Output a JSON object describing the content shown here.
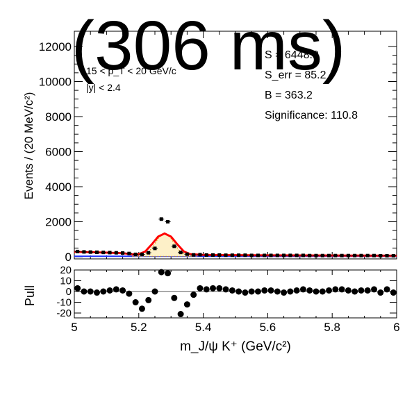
{
  "overlay_title": "(306 ms)",
  "info": {
    "pt_line": "15 < p_T < 20 GeV/c",
    "y_line": "|y| < 2.4",
    "s_line": "S = 6448.0",
    "serr_line": "S_err = 85.2",
    "b_line": "B = 363.2",
    "sig_line": "Significance: 110.8"
  },
  "chart_data": [
    {
      "type": "line",
      "panel": "main",
      "ylabel": "Events / (20 MeV/c²)",
      "xlabel": "m_J/ψ K⁺ (GeV/c²)",
      "xlim": [
        5.0,
        6.0
      ],
      "ylim": [
        0,
        12000
      ],
      "xticks": [
        "5",
        "5.2",
        "5.4",
        "5.6",
        "5.8",
        "6"
      ],
      "yticks": [
        "0",
        "2000",
        "4000",
        "6000",
        "8000",
        "10000",
        "12000"
      ],
      "series": [
        {
          "role": "data points",
          "x": [
            5.01,
            5.03,
            5.05,
            5.07,
            5.09,
            5.11,
            5.13,
            5.15,
            5.17,
            5.19,
            5.21,
            5.23,
            5.25,
            5.27,
            5.29,
            5.31,
            5.33,
            5.35,
            5.37,
            5.39,
            5.41,
            5.43,
            5.45,
            5.47,
            5.49,
            5.51,
            5.53,
            5.55,
            5.57,
            5.59,
            5.61,
            5.63,
            5.65,
            5.67,
            5.69,
            5.71,
            5.73,
            5.75,
            5.77,
            5.79,
            5.81,
            5.83,
            5.85,
            5.87,
            5.89,
            5.91,
            5.93,
            5.95,
            5.97,
            5.99
          ],
          "y": [
            300,
            280,
            270,
            260,
            250,
            240,
            230,
            215,
            190,
            140,
            140,
            230,
            480,
            2150,
            2000,
            600,
            250,
            150,
            110,
            120,
            100,
            100,
            100,
            90,
            90,
            90,
            90,
            80,
            80,
            80,
            80,
            80,
            80,
            80,
            80,
            80,
            70,
            70,
            70,
            70,
            70,
            70,
            70,
            70,
            70,
            70,
            70,
            60,
            60,
            60
          ]
        },
        {
          "role": "total fit",
          "color": "#ff0000",
          "x": [
            5.0,
            5.05,
            5.1,
            5.15,
            5.18,
            5.2,
            5.22,
            5.24,
            5.26,
            5.28,
            5.3,
            5.32,
            5.34,
            5.36,
            5.4,
            5.5,
            5.6,
            5.7,
            5.8,
            5.9,
            6.0
          ],
          "y": [
            280,
            260,
            240,
            210,
            140,
            150,
            300,
            700,
            1150,
            1330,
            1150,
            700,
            300,
            150,
            110,
            95,
            85,
            80,
            75,
            70,
            65
          ]
        }
      ]
    },
    {
      "type": "scatter",
      "panel": "pull",
      "ylabel": "Pull",
      "xlim": [
        5.0,
        6.0
      ],
      "ylim": [
        -22,
        22
      ],
      "yticks": [
        "-20",
        "-10",
        "0",
        "10",
        "20"
      ],
      "x": [
        5.01,
        5.03,
        5.05,
        5.07,
        5.09,
        5.11,
        5.13,
        5.15,
        5.17,
        5.19,
        5.21,
        5.23,
        5.25,
        5.27,
        5.29,
        5.31,
        5.33,
        5.35,
        5.37,
        5.39,
        5.41,
        5.43,
        5.45,
        5.47,
        5.49,
        5.51,
        5.53,
        5.55,
        5.57,
        5.59,
        5.61,
        5.63,
        5.65,
        5.67,
        5.69,
        5.71,
        5.73,
        5.75,
        5.77,
        5.79,
        5.81,
        5.83,
        5.85,
        5.87,
        5.89,
        5.91,
        5.93,
        5.95,
        5.97,
        5.99
      ],
      "y": [
        3,
        0,
        0,
        -1,
        0,
        1,
        2,
        1,
        -2,
        -10,
        -16,
        -8,
        0,
        18,
        17,
        -6,
        -21,
        -12,
        -3,
        3,
        2,
        3,
        3,
        2,
        1,
        0,
        -1,
        0,
        0,
        1,
        1,
        0,
        -1,
        0,
        1,
        2,
        1,
        0,
        0,
        1,
        2,
        2,
        1,
        0,
        1,
        1,
        2,
        -1,
        2,
        -1
      ]
    }
  ]
}
